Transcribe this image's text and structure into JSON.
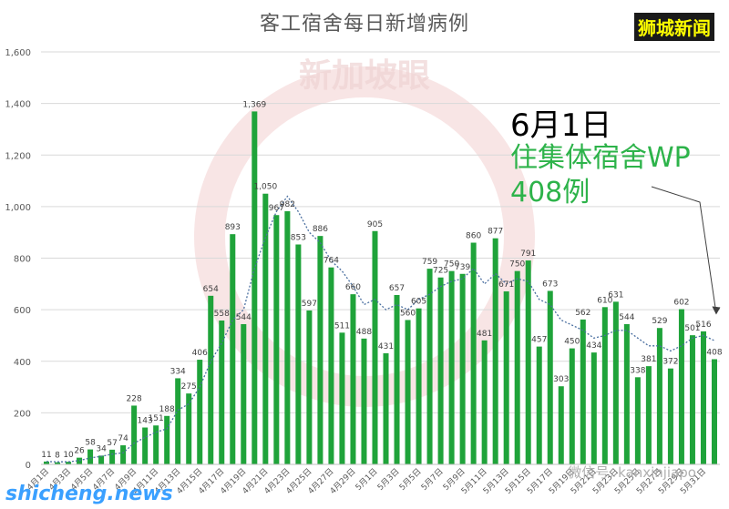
{
  "chart_data": {
    "type": "bar",
    "title": "客工宿舍每日新增病例",
    "ylim": [
      0,
      1600
    ],
    "yticks": [
      0,
      200,
      400,
      600,
      800,
      1000,
      1200,
      1400,
      1600
    ],
    "ytick_labels": [
      "0",
      "200",
      "400",
      "600",
      "800",
      "1,000",
      "1,200",
      "1,400",
      "1,600"
    ],
    "grid": true,
    "categories": [
      "4月1日",
      "4月2日",
      "4月3日",
      "4月4日",
      "4月5日",
      "4月6日",
      "4月7日",
      "4月8日",
      "4月9日",
      "4月10日",
      "4月11日",
      "4月12日",
      "4月13日",
      "4月14日",
      "4月15日",
      "4月16日",
      "4月17日",
      "4月18日",
      "4月19日",
      "4月20日",
      "4月21日",
      "4月22日",
      "4月23日",
      "4月24日",
      "4月25日",
      "4月26日",
      "4月27日",
      "4月28日",
      "4月29日",
      "4月30日",
      "5月1日",
      "5月2日",
      "5月3日",
      "5月4日",
      "5月5日",
      "5月6日",
      "5月7日",
      "5月8日",
      "5月9日",
      "5月10日",
      "5月11日",
      "5月12日",
      "5月13日",
      "5月14日",
      "5月15日",
      "5月16日",
      "5月17日",
      "5月18日",
      "5月19日",
      "5月20日",
      "5月21日",
      "5月22日",
      "5月23日",
      "5月24日",
      "5月25日",
      "5月26日",
      "5月27日",
      "5月28日",
      "5月29日",
      "5月30日",
      "5月31日",
      "6月1日"
    ],
    "xtick_labels": [
      "4月1日",
      "4月3日",
      "4月5日",
      "4月7日",
      "4月9日",
      "4月11日",
      "4月13日",
      "4月15日",
      "4月17日",
      "4月19日",
      "4月21日",
      "4月23日",
      "4月25日",
      "4月27日",
      "4月29日",
      "5月1日",
      "5月3日",
      "5月5日",
      "5月7日",
      "5月9日",
      "5月11日",
      "5月13日",
      "5月15日",
      "5月17日",
      "5月19日",
      "5月21日",
      "5月23日",
      "5月25日",
      "5月27日",
      "5月29日",
      "5月31日"
    ],
    "values": [
      11,
      8,
      10,
      26,
      58,
      34,
      57,
      74,
      228,
      143,
      151,
      188,
      334,
      275,
      406,
      654,
      558,
      893,
      544,
      1369,
      1050,
      967,
      982,
      853,
      597,
      886,
      764,
      511,
      660,
      488,
      905,
      431,
      657,
      560,
      605,
      759,
      725,
      750,
      739,
      860,
      481,
      877,
      671,
      750,
      791,
      457,
      673,
      303,
      450,
      562,
      434,
      610,
      631,
      544,
      338,
      381,
      529,
      372,
      602,
      501,
      516,
      408
    ],
    "data_label_texts": [
      "11",
      "8",
      "10",
      "26",
      "58",
      "34",
      "57",
      "74",
      "228",
      "143",
      "151",
      "188",
      "334",
      "275",
      "406",
      "654",
      "558",
      "893",
      "544",
      "1,369",
      "1,050",
      "967",
      "982",
      "853",
      "597",
      "886",
      "764",
      "511",
      "660",
      "488",
      "905",
      "431",
      "657",
      "560",
      "605",
      "759",
      "725",
      "750",
      "739",
      "860",
      "481",
      "877",
      "671",
      "750",
      "791",
      "457",
      "673",
      "303",
      "450",
      "562",
      "434",
      "610",
      "631",
      "544",
      "338",
      "381",
      "529",
      "372",
      "602",
      "501",
      "516",
      "408"
    ],
    "trendline": {
      "style": "dotted",
      "values": [
        11,
        10,
        10,
        15,
        25,
        31,
        40,
        45,
        82,
        105,
        125,
        138,
        210,
        235,
        300,
        400,
        470,
        560,
        600,
        760,
        880,
        980,
        1040,
        980,
        900,
        860,
        790,
        750,
        690,
        620,
        640,
        600,
        620,
        600,
        640,
        660,
        690,
        710,
        720,
        760,
        700,
        740,
        700,
        720,
        710,
        640,
        620,
        560,
        540,
        520,
        490,
        500,
        520,
        520,
        490,
        460,
        460,
        440,
        460,
        490,
        500,
        480
      ]
    }
  },
  "colors": {
    "bar": "#1fa33a",
    "grid": "#d9d9d9",
    "trend": "#4a6fa0",
    "arrow": "#404040",
    "note_green": "#2db34a"
  },
  "annotation": {
    "date": "6月1日",
    "line1": "住集体宿舍WP",
    "line2": "408例"
  },
  "branding": {
    "corner": "狮城新闻",
    "watermark": "新加坡眼",
    "wechat": "微信号: kanxinjiapo",
    "site": "shicheng.news"
  }
}
